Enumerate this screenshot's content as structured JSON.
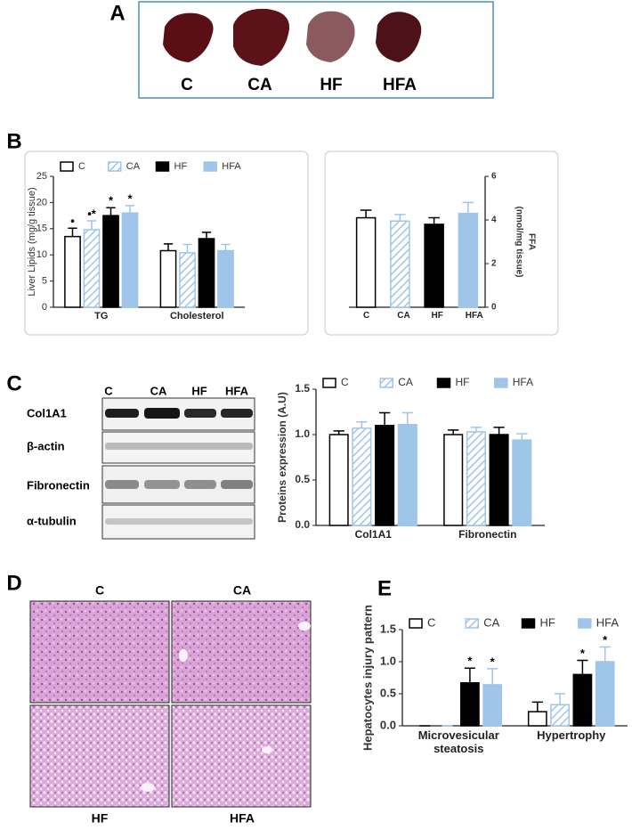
{
  "panel_labels": [
    "A",
    "B",
    "C",
    "D",
    "E"
  ],
  "photos": {
    "labels": [
      "C",
      "CA",
      "HF",
      "HFA"
    ]
  },
  "blot": {
    "lanes": [
      "C",
      "CA",
      "HF",
      "HFA"
    ],
    "rows": [
      "Col1A1",
      "β-actin",
      "Fibronectin",
      "α-tubulin"
    ]
  },
  "histology": {
    "labels": [
      "C",
      "CA",
      "HF",
      "HFA"
    ]
  },
  "chart_data": [
    {
      "type": "bar",
      "ylabel": "Liver Lipids (mg/g tissue)",
      "categories": [
        "TG",
        "Cholesterol"
      ],
      "ylim": [
        0,
        25
      ],
      "yticks": [
        0,
        5,
        10,
        15,
        20,
        25
      ],
      "legend": true,
      "series": [
        {
          "name": "C",
          "color": "#ffffff",
          "edgecolor": "#000000",
          "hatch": false,
          "values": [
            13.5,
            10.8
          ],
          "errors": [
            1.6,
            1.3
          ],
          "annotations": [
            "•",
            null
          ]
        },
        {
          "name": "CA",
          "color": "#9fc5e8",
          "edgecolor": "#9fc5e8",
          "hatch": true,
          "values": [
            14.8,
            10.4
          ],
          "errors": [
            1.7,
            1.6
          ],
          "annotations": [
            "•*",
            null
          ]
        },
        {
          "name": "HF",
          "color": "#000000",
          "edgecolor": "#000000",
          "hatch": false,
          "values": [
            17.5,
            13.1
          ],
          "errors": [
            1.5,
            1.2
          ],
          "annotations": [
            "*",
            null
          ]
        },
        {
          "name": "HFA",
          "color": "#9fc5e8",
          "edgecolor": "#9fc5e8",
          "hatch": false,
          "values": [
            18.0,
            10.8
          ],
          "errors": [
            1.4,
            1.2
          ],
          "annotations": [
            "*",
            null
          ]
        }
      ]
    },
    {
      "type": "bar",
      "ylabel": [
        "FFA",
        "(nmol/mg tissue)"
      ],
      "categories": [
        "C",
        "CA",
        "HF",
        "HFA"
      ],
      "values": [
        4.1,
        3.95,
        3.8,
        4.3
      ],
      "errors": [
        0.35,
        0.3,
        0.3,
        0.5
      ],
      "colors": [
        "#ffffff",
        "#9fc5e8",
        "#000000",
        "#9fc5e8"
      ],
      "edgecolors": [
        "#000000",
        "#9fc5e8",
        "#000000",
        "#9fc5e8"
      ],
      "hatch": [
        false,
        true,
        false,
        false
      ],
      "ylim": [
        0,
        6
      ],
      "yticks": [
        0,
        2,
        4,
        6
      ],
      "axis_side": "right",
      "legend": false
    },
    {
      "type": "bar",
      "ylabel": "Proteins expression (A.U)",
      "categories": [
        "Col1A1",
        "Fibronectin"
      ],
      "ylim": [
        0,
        1.5
      ],
      "yticks": [
        {
          "value": 0,
          "label": "0.0"
        },
        {
          "value": 0.5,
          "label": "0.5"
        },
        {
          "value": 1,
          "label": "1.0"
        },
        {
          "value": 1.5,
          "label": "1.5"
        }
      ],
      "legend": true,
      "series": [
        {
          "name": "C",
          "color": "#ffffff",
          "edgecolor": "#000000",
          "hatch": false,
          "values": [
            1.0,
            1.0
          ],
          "errors": [
            0.04,
            0.05
          ]
        },
        {
          "name": "CA",
          "color": "#9fc5e8",
          "edgecolor": "#9fc5e8",
          "hatch": true,
          "values": [
            1.07,
            1.03
          ],
          "errors": [
            0.07,
            0.05
          ]
        },
        {
          "name": "HF",
          "color": "#000000",
          "edgecolor": "#000000",
          "hatch": false,
          "values": [
            1.1,
            1.0
          ],
          "errors": [
            0.14,
            0.08
          ]
        },
        {
          "name": "HFA",
          "color": "#9fc5e8",
          "edgecolor": "#9fc5e8",
          "hatch": false,
          "values": [
            1.11,
            0.94
          ],
          "errors": [
            0.13,
            0.07
          ]
        }
      ]
    },
    {
      "type": "bar",
      "ylabel": "Hepatocytes injury pattern",
      "categories": [
        "Microvesicular steatosis",
        "Hypertrophy"
      ],
      "ylim": [
        0,
        1.5
      ],
      "yticks": [
        {
          "value": 0,
          "label": "0.0"
        },
        {
          "value": 0.5,
          "label": "0.5"
        },
        {
          "value": 1,
          "label": "1.0"
        },
        {
          "value": 1.5,
          "label": "1.5"
        }
      ],
      "legend": true,
      "series": [
        {
          "name": "C",
          "color": "#ffffff",
          "edgecolor": "#000000",
          "hatch": false,
          "values": [
            0,
            0.22
          ],
          "errors": [
            0,
            0.15
          ]
        },
        {
          "name": "CA",
          "color": "#9fc5e8",
          "edgecolor": "#9fc5e8",
          "hatch": true,
          "values": [
            0,
            0.33
          ],
          "errors": [
            0,
            0.17
          ]
        },
        {
          "name": "HF",
          "color": "#000000",
          "edgecolor": "#000000",
          "hatch": false,
          "values": [
            0.67,
            0.8
          ],
          "errors": [
            0.23,
            0.22
          ],
          "annotations": [
            "*",
            "*"
          ]
        },
        {
          "name": "HFA",
          "color": "#9fc5e8",
          "edgecolor": "#9fc5e8",
          "hatch": false,
          "values": [
            0.64,
            1.0
          ],
          "errors": [
            0.25,
            0.23
          ],
          "annotations": [
            "*",
            "*"
          ]
        }
      ]
    }
  ]
}
